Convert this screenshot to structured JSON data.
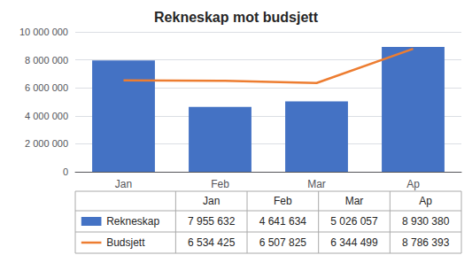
{
  "chart_data": {
    "type": "bar",
    "title": "Rekneskap mot budsjett",
    "categories": [
      "Jan",
      "Feb",
      "Mar",
      "Ap"
    ],
    "series": [
      {
        "name": "Rekneskap",
        "type": "bar",
        "color": "#4472C4",
        "values": [
          7955632,
          4641634,
          5026057,
          8930380
        ],
        "value_labels": [
          "7 955 632",
          "4 641 634",
          "5 026 057",
          "8 930 380"
        ]
      },
      {
        "name": "Budsjett",
        "type": "line",
        "color": "#ED7D31",
        "values": [
          6534425,
          6507825,
          6344499,
          8786393
        ],
        "value_labels": [
          "6 534 425",
          "6 507 825",
          "6 344 499",
          "8 786 393"
        ]
      }
    ],
    "ylim": [
      0,
      10000000
    ],
    "yticks": [
      0,
      {
        "value": 2000000,
        "label": "2 000 000"
      },
      {
        "value": 4000000,
        "label": "4 000 000"
      },
      {
        "value": 6000000,
        "label": "6 000 000"
      },
      {
        "value": 8000000,
        "label": "8 000 000"
      },
      {
        "value": 10000000,
        "label": "10 000 000"
      }
    ],
    "grid": true
  }
}
